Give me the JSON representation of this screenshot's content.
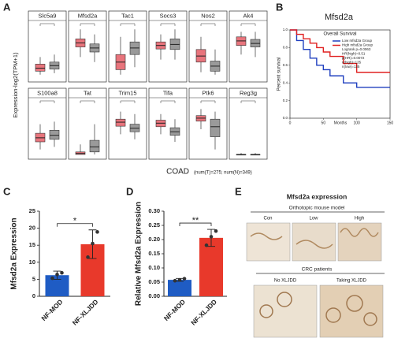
{
  "chart_data": [
    {
      "type": "box",
      "label": "A",
      "ylabel": "Expression-log2(TPM+1)",
      "xlabel": "COAD",
      "note": "(num(T)=275; num(N)=349)",
      "ylim": [
        0,
        10
      ],
      "tumor_color": "#e8747c",
      "normal_color": "#9a9a9a",
      "groups": [
        {
          "gene": "Slc5a9",
          "tumor": [
            0.5,
            1.2,
            1.8,
            2.6,
            4
          ],
          "normal": [
            0.8,
            1.6,
            2.3,
            3,
            4.5
          ]
        },
        {
          "gene": "Mfsd2a",
          "tumor": [
            4,
            6,
            6.8,
            7.6,
            9.5
          ],
          "normal": [
            3,
            5,
            5.8,
            6.6,
            8.5
          ]
        },
        {
          "gene": "Tac1",
          "tumor": [
            0.5,
            1.5,
            3,
            4.5,
            8
          ],
          "normal": [
            2,
            4.5,
            5.8,
            7,
            9.5
          ]
        },
        {
          "gene": "Socs3",
          "tumor": [
            3.5,
            5.6,
            6.3,
            7,
            8.5
          ],
          "normal": [
            3.5,
            5.5,
            6.5,
            7.6,
            9.5
          ]
        },
        {
          "gene": "Nos2",
          "tumor": [
            1,
            3,
            4.2,
            5.5,
            8
          ],
          "normal": [
            0.5,
            1.2,
            2.2,
            3.2,
            5.5
          ]
        },
        {
          "gene": "Ak4",
          "tumor": [
            4.5,
            6.3,
            7.2,
            8,
            9
          ],
          "normal": [
            4,
            6,
            6.7,
            7.5,
            9
          ]
        },
        {
          "gene": "S100a8",
          "tumor": [
            1,
            2.5,
            3.3,
            4.2,
            6
          ],
          "normal": [
            1.5,
            3,
            3.8,
            4.8,
            6.5
          ]
        },
        {
          "gene": "Tat",
          "tumor": [
            0,
            0,
            0.2,
            0.5,
            2
          ],
          "normal": [
            0,
            0.5,
            1.5,
            2.8,
            6
          ]
        },
        {
          "gene": "Trim15",
          "tumor": [
            4,
            5.6,
            6.4,
            7,
            8.5
          ],
          "normal": [
            3,
            4.5,
            5.2,
            6,
            8
          ]
        },
        {
          "gene": "Tifa",
          "tumor": [
            4,
            5.5,
            6.2,
            6.8,
            8
          ],
          "normal": [
            2.5,
            3.8,
            4.5,
            5.3,
            7
          ]
        },
        {
          "gene": "Ptk6",
          "tumor": [
            5,
            6.6,
            7.2,
            7.7,
            9
          ],
          "normal": [
            1,
            3.5,
            5.5,
            7,
            8.5
          ]
        },
        {
          "gene": "Reg3g",
          "tumor": [
            0,
            0,
            0,
            0,
            0.3
          ],
          "normal": [
            0,
            0,
            0,
            0,
            0.3
          ]
        }
      ]
    },
    {
      "type": "step",
      "label": "B",
      "title": "Mfsd2a",
      "subtitle": "Overall Survival",
      "ylabel": "Percent survival",
      "xlabel": "Months",
      "xlim": [
        0,
        150
      ],
      "xticks": [
        0,
        50,
        100,
        150
      ],
      "ylim": [
        0,
        1
      ],
      "yticks": [
        {
          "value": 0,
          "label": "0.0"
        },
        {
          "value": 0.2,
          "label": "0.2"
        },
        {
          "value": 0.4,
          "label": "0.4"
        },
        {
          "value": 0.6,
          "label": "0.6"
        },
        {
          "value": 0.8,
          "label": "0.8"
        },
        {
          "value": 1,
          "label": "1.0"
        }
      ],
      "x": [
        0,
        10,
        20,
        30,
        40,
        50,
        60,
        80,
        100,
        150
      ],
      "series": [
        {
          "name": "Low mfsd2a Group",
          "color": "#1f3fbf",
          "values": [
            1,
            0.88,
            0.78,
            0.68,
            0.6,
            0.55,
            0.48,
            0.4,
            0.35,
            0.35
          ]
        },
        {
          "name": "High mfsd2a Group",
          "color": "#e02020",
          "values": [
            1,
            0.95,
            0.9,
            0.85,
            0.8,
            0.75,
            0.7,
            0.62,
            0.52,
            0.52
          ]
        }
      ],
      "stats": [
        "Logrank p=0.0063",
        "HR(high)=0.51",
        "p(HR)=0.0072",
        "n(high)=135",
        "n(low)=135"
      ]
    },
    {
      "type": "bar",
      "label": "C",
      "ylabel": "Mfsd2a Expression",
      "categories": [
        "NF-MOD",
        "NF-XLJDD"
      ],
      "values": [
        6.2,
        15.3
      ],
      "errors": [
        1.2,
        4.2
      ],
      "points": [
        [
          5.3,
          6.4,
          6.9
        ],
        [
          11.5,
          15.5,
          18.9
        ]
      ],
      "colors": [
        "#1f5cc4",
        "#e8392b"
      ],
      "ylim": [
        0,
        25
      ],
      "yticks": [
        0,
        5,
        10,
        15,
        20,
        25
      ],
      "significance": "*"
    },
    {
      "type": "bar",
      "label": "D",
      "ylabel": "Relative Mfsd2a Expression",
      "categories": [
        "NF-MOD",
        "NF-XLJDD"
      ],
      "values": [
        0.058,
        0.206
      ],
      "errors": [
        0.005,
        0.03
      ],
      "points": [
        [
          0.055,
          0.058,
          0.062
        ],
        [
          0.18,
          0.21,
          0.23
        ]
      ],
      "colors": [
        "#1f5cc4",
        "#e8392b"
      ],
      "ylim": [
        0,
        0.3
      ],
      "yticks": [
        {
          "value": 0,
          "label": "0.00"
        },
        {
          "value": 0.05,
          "label": "0.05"
        },
        {
          "value": 0.1,
          "label": "0.10"
        },
        {
          "value": 0.15,
          "label": "0.15"
        },
        {
          "value": 0.2,
          "label": "0.20"
        },
        {
          "value": 0.25,
          "label": "0.25"
        },
        {
          "value": 0.3,
          "label": "0.30"
        }
      ],
      "significance": "**"
    }
  ],
  "panel_e": {
    "label": "E",
    "title": "Mfsd2a expression",
    "group1": "Orthotopic mouse model",
    "group1_labels": [
      "Con",
      "Low",
      "High"
    ],
    "group2": "CRC patients",
    "group2_labels": [
      "No XLJDD",
      "Taking XLJDD"
    ]
  }
}
